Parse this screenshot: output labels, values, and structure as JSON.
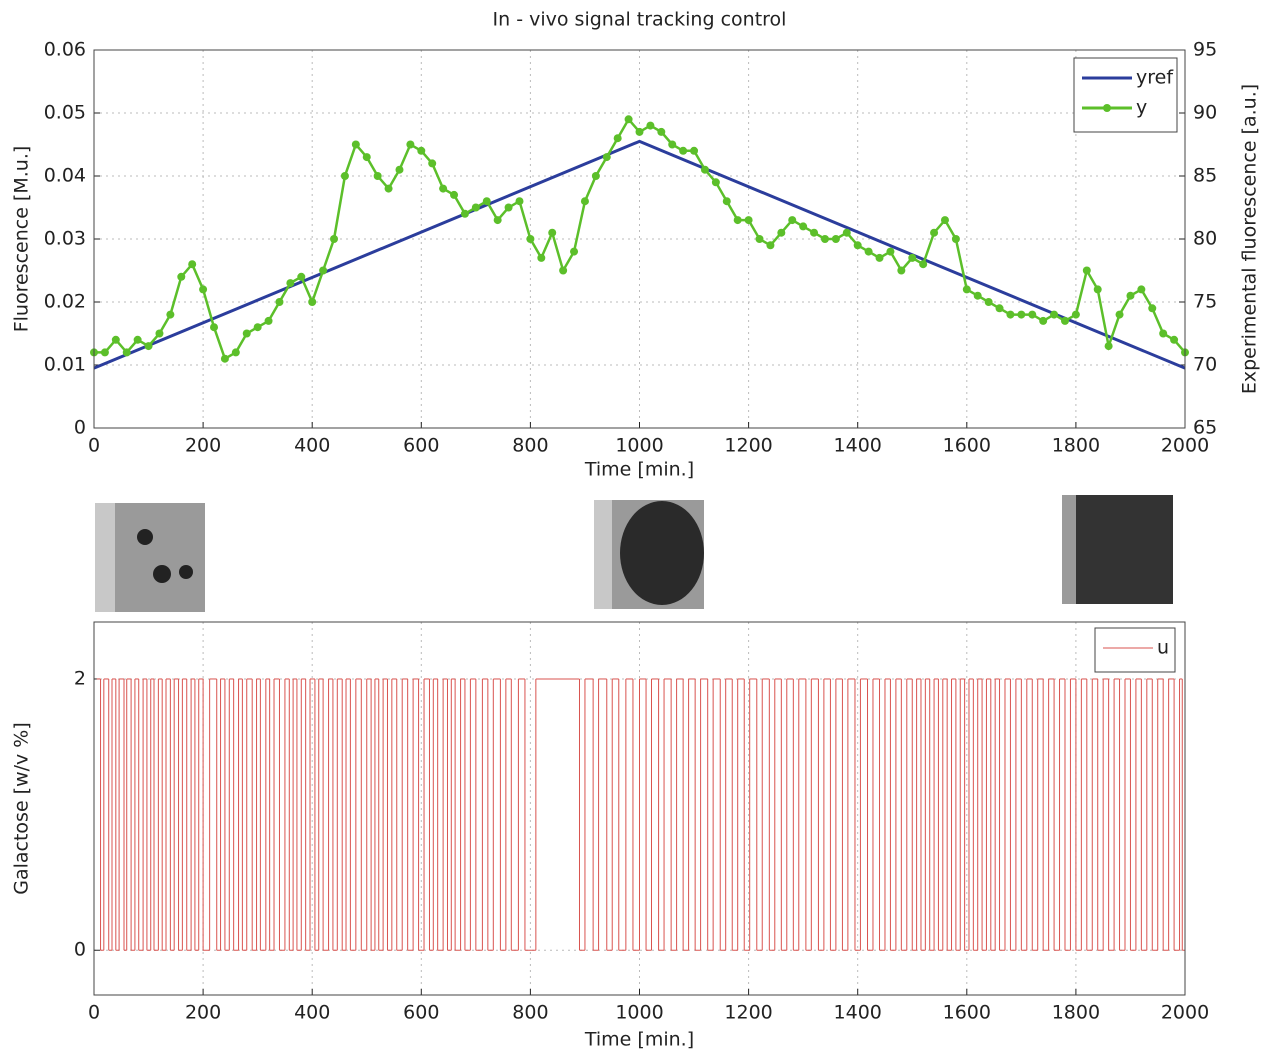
{
  "chart_data": [
    {
      "type": "line",
      "title": "In - vivo signal tracking control",
      "xlabel": "Time [min.]",
      "ylabel": "Fluorescence [M.u.]",
      "y2label": "Experimental fluorescence [a.u.]",
      "xlim": [
        0,
        2000
      ],
      "xticks": [
        0,
        200,
        400,
        600,
        800,
        1000,
        1200,
        1400,
        1600,
        1800,
        2000
      ],
      "ylim": [
        0,
        0.06
      ],
      "yticks": [
        0,
        0.01,
        0.02,
        0.03,
        0.04,
        0.05,
        0.06
      ],
      "y2lim": [
        65,
        95
      ],
      "y2ticks": [
        65,
        70,
        75,
        80,
        85,
        90,
        95
      ],
      "grid": true,
      "legend": "upper-right",
      "series": [
        {
          "name": "yref",
          "color": "#2b3d9c",
          "marker": false,
          "x": [
            0,
            1000,
            2000
          ],
          "values": [
            0.0095,
            0.0455,
            0.0095
          ]
        },
        {
          "name": "y",
          "color": "#5cbf2a",
          "marker": true,
          "x": [
            0,
            20,
            40,
            60,
            80,
            100,
            120,
            140,
            160,
            180,
            200,
            220,
            240,
            260,
            280,
            300,
            320,
            340,
            360,
            380,
            400,
            420,
            440,
            460,
            480,
            500,
            520,
            540,
            560,
            580,
            600,
            620,
            640,
            660,
            680,
            700,
            720,
            740,
            760,
            780,
            800,
            820,
            840,
            860,
            880,
            900,
            920,
            940,
            960,
            980,
            1000,
            1020,
            1040,
            1060,
            1080,
            1100,
            1120,
            1140,
            1160,
            1180,
            1200,
            1220,
            1240,
            1260,
            1280,
            1300,
            1320,
            1340,
            1360,
            1380,
            1400,
            1420,
            1440,
            1460,
            1480,
            1500,
            1520,
            1540,
            1560,
            1580,
            1600,
            1620,
            1640,
            1660,
            1680,
            1700,
            1720,
            1740,
            1760,
            1780,
            1800,
            1820,
            1840,
            1860,
            1880,
            1900,
            1920,
            1940,
            1960,
            1980,
            2000
          ],
          "values": [
            0.012,
            0.012,
            0.014,
            0.012,
            0.014,
            0.013,
            0.015,
            0.018,
            0.024,
            0.026,
            0.022,
            0.016,
            0.011,
            0.012,
            0.015,
            0.016,
            0.017,
            0.02,
            0.023,
            0.024,
            0.02,
            0.025,
            0.03,
            0.04,
            0.045,
            0.043,
            0.04,
            0.038,
            0.041,
            0.045,
            0.044,
            0.042,
            0.038,
            0.037,
            0.034,
            0.035,
            0.036,
            0.033,
            0.035,
            0.036,
            0.03,
            0.027,
            0.031,
            0.025,
            0.028,
            0.036,
            0.04,
            0.043,
            0.046,
            0.049,
            0.047,
            0.048,
            0.047,
            0.045,
            0.044,
            0.044,
            0.041,
            0.039,
            0.036,
            0.033,
            0.033,
            0.03,
            0.029,
            0.031,
            0.033,
            0.032,
            0.031,
            0.03,
            0.03,
            0.031,
            0.029,
            0.028,
            0.027,
            0.028,
            0.025,
            0.027,
            0.026,
            0.031,
            0.033,
            0.03,
            0.022,
            0.021,
            0.02,
            0.019,
            0.018,
            0.018,
            0.018,
            0.017,
            0.018,
            0.017,
            0.018,
            0.025,
            0.022,
            0.013,
            0.018,
            0.021,
            0.022,
            0.019,
            0.015,
            0.014,
            0.012
          ]
        }
      ]
    },
    {
      "type": "step",
      "xlabel": "Time [min.]",
      "ylabel": "Galactose [w/v %]",
      "xlim": [
        0,
        2000
      ],
      "xticks": [
        0,
        200,
        400,
        600,
        800,
        1000,
        1200,
        1400,
        1600,
        1800,
        2000
      ],
      "ylim": [
        -0.33,
        2.42
      ],
      "yticks": [
        0,
        2
      ],
      "grid": true,
      "legend": "upper-right",
      "series": [
        {
          "name": "u",
          "color": "#d9534f",
          "x": [
            5,
            12,
            18,
            27,
            33,
            40,
            46,
            55,
            60,
            68,
            75,
            82,
            90,
            97,
            104,
            110,
            118,
            125,
            132,
            140,
            147,
            155,
            162,
            170,
            178,
            185,
            192,
            200,
            212,
            225,
            232,
            240,
            248,
            256,
            265,
            272,
            280,
            290,
            298,
            305,
            315,
            322,
            330,
            340,
            350,
            358,
            365,
            372,
            380,
            388,
            396,
            405,
            412,
            420,
            430,
            438,
            446,
            455,
            462,
            470,
            480,
            490,
            500,
            508,
            515,
            522,
            530,
            538,
            546,
            555,
            565,
            575,
            585,
            595,
            605,
            615,
            622,
            630,
            640,
            648,
            655,
            662,
            672,
            680,
            690,
            700,
            712,
            722,
            732,
            745,
            755,
            765,
            778,
            790,
            810,
            890,
            900,
            915,
            925,
            940,
            950,
            962,
            975,
            988,
            1000,
            1012,
            1022,
            1035,
            1045,
            1058,
            1068,
            1080,
            1090,
            1102,
            1112,
            1125,
            1135,
            1148,
            1158,
            1170,
            1180,
            1192,
            1202,
            1215,
            1225,
            1238,
            1248,
            1260,
            1270,
            1282,
            1292,
            1305,
            1315,
            1328,
            1338,
            1350,
            1360,
            1372,
            1382,
            1395,
            1405,
            1418,
            1428,
            1440,
            1450,
            1460,
            1470,
            1480,
            1490,
            1500,
            1508,
            1516,
            1524,
            1532,
            1540,
            1548,
            1556,
            1564,
            1572,
            1580,
            1588,
            1596,
            1604,
            1612,
            1620,
            1628,
            1636,
            1644,
            1652,
            1660,
            1670,
            1680,
            1690,
            1700,
            1710,
            1720,
            1730,
            1740,
            1750,
            1760,
            1770,
            1780,
            1790,
            1800,
            1810,
            1820,
            1830,
            1840,
            1850,
            1860,
            1870,
            1880,
            1890,
            1900,
            1910,
            1920,
            1930,
            1940,
            1950,
            1960,
            1970,
            1980,
            1990,
            1995
          ],
          "values": [
            2,
            0,
            2,
            0,
            2,
            0,
            2,
            0,
            2,
            0,
            2,
            0,
            2,
            0,
            2,
            0,
            2,
            0,
            2,
            0,
            2,
            0,
            2,
            0,
            2,
            0,
            2,
            0,
            2,
            0,
            2,
            0,
            2,
            0,
            2,
            0,
            2,
            0,
            2,
            0,
            2,
            0,
            2,
            0,
            2,
            0,
            2,
            0,
            2,
            0,
            2,
            0,
            2,
            0,
            2,
            0,
            2,
            0,
            2,
            0,
            2,
            0,
            2,
            0,
            2,
            0,
            2,
            0,
            2,
            0,
            2,
            0,
            2,
            0,
            2,
            0,
            2,
            0,
            2,
            0,
            2,
            0,
            2,
            0,
            2,
            0,
            2,
            0,
            2,
            0,
            2,
            0,
            2,
            0,
            2,
            0,
            2,
            0,
            2,
            0,
            2,
            0,
            2,
            0,
            2,
            0,
            2,
            0,
            2,
            0,
            2,
            0,
            2,
            0,
            2,
            0,
            2,
            0,
            2,
            0,
            2,
            0,
            2,
            0,
            2,
            0,
            2,
            0,
            2,
            0,
            2,
            0,
            2,
            0,
            2,
            0,
            2,
            0,
            2,
            0,
            2,
            0,
            2,
            0,
            2,
            0,
            2,
            0,
            2,
            0,
            2,
            0,
            2,
            0,
            2,
            0,
            2,
            0,
            2,
            0,
            2,
            0,
            2,
            0,
            2,
            0,
            2,
            0,
            2,
            0,
            2,
            0,
            2,
            0,
            2,
            0,
            2,
            0,
            2,
            0,
            2,
            0,
            2,
            0,
            2,
            0,
            2,
            0,
            2,
            0,
            2,
            0,
            2,
            0,
            2,
            0,
            2,
            0,
            2,
            0,
            2,
            0,
            2,
            0
          ]
        }
      ]
    }
  ]
}
